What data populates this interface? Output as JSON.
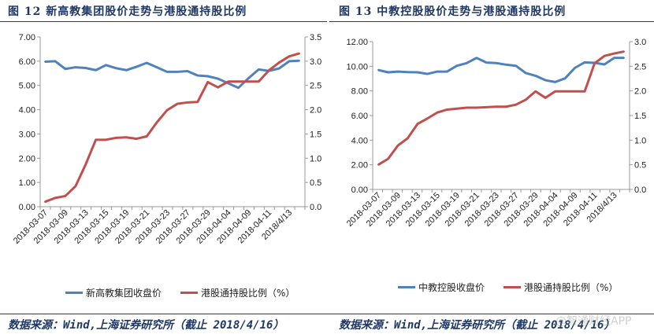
{
  "figures": [
    {
      "title": "图 12 新高教集团股价走势与港股通持股比例",
      "legend": [
        "新高教集团收盘价",
        "港股通持股比例（%）"
      ],
      "footer": "数据来源：Wind,上海证券研究所（截止 2018/4/16）"
    },
    {
      "title": "图 13 中教控股股价走势与港股通持股比例",
      "legend": [
        "中教控股收盘价",
        "港股通持股比例（%）"
      ],
      "footer": "数据来源：Wind,上海证券研究所（截止 2018/4/16）"
    }
  ],
  "watermark": "@智通财经APP",
  "colors": {
    "price": "#4f81bd",
    "ratio": "#c0504d",
    "title": "#1f3864",
    "rule": "#c00000"
  },
  "chart_data": [
    {
      "type": "line",
      "x_tick_labels": [
        "2018-03-07",
        "2018-03-09",
        "2018-03-13",
        "2018-03-15",
        "2018-03-19",
        "2018-03-21",
        "2018-03-23",
        "2018-03-27",
        "2018-03-29",
        "2018-04-04",
        "2018-04-09",
        "2018-04-11",
        "2018/4/13"
      ],
      "y_left": {
        "ylim": [
          0,
          7
        ],
        "ticks": [
          "0.00",
          "1.00",
          "2.00",
          "3.00",
          "4.00",
          "5.00",
          "6.00",
          "7.00"
        ]
      },
      "y_right": {
        "ylim": [
          0,
          3.5
        ],
        "ticks": [
          "0.0",
          "0.5",
          "1.0",
          "1.5",
          "2.0",
          "2.5",
          "3.0",
          "3.5"
        ]
      },
      "series": [
        {
          "name": "新高教集团收盘价",
          "axis": "left",
          "values": [
            5.98,
            6.0,
            5.68,
            5.75,
            5.72,
            5.63,
            5.84,
            5.71,
            5.63,
            5.77,
            5.93,
            5.75,
            5.56,
            5.56,
            5.59,
            5.41,
            5.38,
            5.28,
            5.09,
            4.9,
            5.3,
            5.66,
            5.6,
            5.7,
            6.0,
            6.02
          ]
        },
        {
          "name": "港股通持股比例（%）",
          "axis": "right",
          "values": [
            0.1,
            0.18,
            0.22,
            0.42,
            0.87,
            1.38,
            1.38,
            1.42,
            1.43,
            1.4,
            1.45,
            1.74,
            1.99,
            2.12,
            2.15,
            2.16,
            2.57,
            2.46,
            2.58,
            2.58,
            2.58,
            2.58,
            2.81,
            2.97,
            3.1,
            3.16
          ]
        }
      ]
    },
    {
      "type": "line",
      "x_tick_labels": [
        "2018-03-07",
        "2018-03-09",
        "2018-03-13",
        "2018-03-15",
        "2018-03-19",
        "2018-03-21",
        "2018-03-23",
        "2018-03-27",
        "2018-03-29",
        "2018-04-04",
        "2018-04-09",
        "2018-04-11",
        "2018/4/13"
      ],
      "y_left": {
        "ylim": [
          0,
          12
        ],
        "ticks": [
          "0.00",
          "2.00",
          "4.00",
          "6.00",
          "8.00",
          "10.00",
          "12.00"
        ]
      },
      "y_right": {
        "ylim": [
          0,
          3
        ],
        "ticks": [
          "0.0",
          "0.5",
          "1.0",
          "1.5",
          "2.0",
          "2.5",
          "3.0"
        ]
      },
      "series": [
        {
          "name": "中教控股收盘价",
          "axis": "left",
          "values": [
            9.7,
            9.51,
            9.57,
            9.53,
            9.51,
            9.38,
            9.57,
            9.57,
            10.04,
            10.26,
            10.68,
            10.3,
            10.26,
            10.13,
            10.04,
            9.45,
            9.23,
            8.87,
            8.72,
            9.02,
            9.87,
            10.32,
            10.28,
            10.15,
            10.68,
            10.68
          ]
        },
        {
          "name": "港股通持股比例（%）",
          "axis": "right",
          "values": [
            0.5,
            0.62,
            0.89,
            1.04,
            1.33,
            1.44,
            1.56,
            1.62,
            1.64,
            1.66,
            1.66,
            1.67,
            1.68,
            1.68,
            1.72,
            1.82,
            1.99,
            1.86,
            1.99,
            1.99,
            1.99,
            1.99,
            2.56,
            2.71,
            2.76,
            2.8
          ]
        }
      ]
    }
  ]
}
